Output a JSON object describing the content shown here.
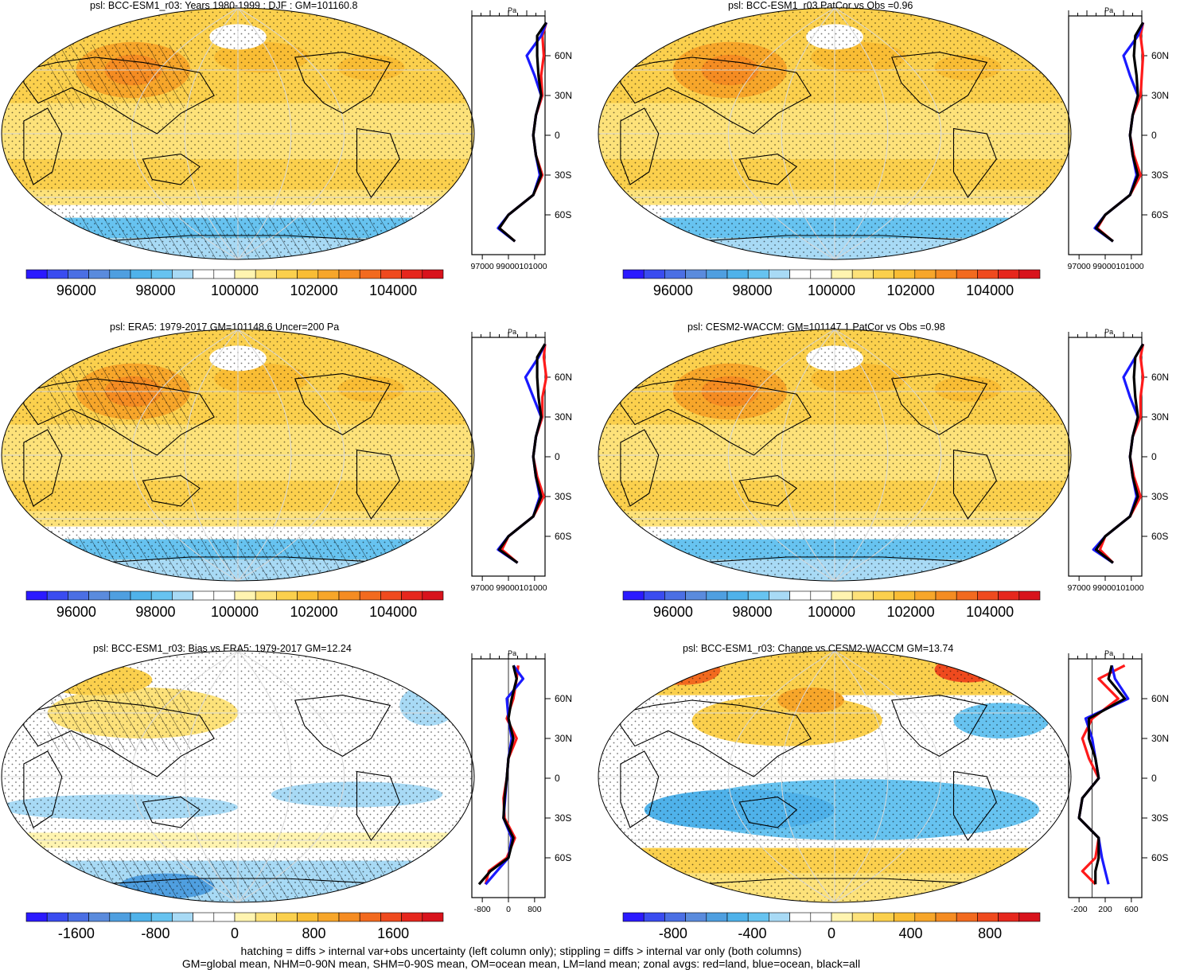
{
  "colors": {
    "abs_scale": [
      "#2b1aff",
      "#3a4cf0",
      "#4b6fe4",
      "#5a8bdd",
      "#4f9fe0",
      "#4fb2ea",
      "#67c3f0",
      "#a8daf5",
      "#ffffff",
      "#ffffff",
      "#fff4b0",
      "#fde27a",
      "#fbd04d",
      "#f9bd34",
      "#f7a62a",
      "#f58c22",
      "#f26a1f",
      "#ef4a1e",
      "#e6271d",
      "#d8131c"
    ],
    "land_line": "#ff1a1a",
    "ocean_line": "#1a1aff",
    "all_line": "#000000"
  },
  "panels": [
    {
      "title": "psl: BCC-ESM1_r03: Years 1980-1999 : DJF : GM=101160.8"
    },
    {
      "title": "psl: BCC-ESM1_r03 PatCor vs Obs =0.96"
    },
    {
      "title": "psl: ERA5: 1979-2017 GM=101148.6 Uncer=200 Pa"
    },
    {
      "title": "psl: CESM2-WACCM: GM=101147.1 PatCor vs Obs =0.98"
    },
    {
      "title": "psl: BCC-ESM1_r03: Bias vs ERA5: 1979-2017 GM=12.24"
    },
    {
      "title": "psl: BCC-ESM1_r03: Change vs CESM2-WACCM GM=13.74"
    }
  ],
  "colorbars": {
    "abs": [
      "96000",
      "98000",
      "100000",
      "102000",
      "104000"
    ],
    "bias": [
      "-1600",
      "-800",
      "0",
      "800",
      "1600"
    ],
    "change": [
      "-800",
      "-400",
      "0",
      "400",
      "800"
    ]
  },
  "zonal": {
    "unit_label": "Pa",
    "lat_labels": [
      "60N",
      "30N",
      "0",
      "30S",
      "60S"
    ],
    "abs_ticks": [
      "97000",
      "99000101000"
    ],
    "bias_ticks": [
      "-800",
      "0",
      "800"
    ],
    "change_ticks": [
      "-200",
      "200",
      "600"
    ]
  },
  "chart_data": [
    {
      "type": "heatmap",
      "title": "psl: BCC-ESM1_r03: Years 1980-1999 : DJF : GM=101160.8",
      "colorbar_ticks": [
        96000,
        98000,
        100000,
        102000,
        104000
      ],
      "zonal_avg": {
        "lat": [
          85,
          75,
          60,
          45,
          30,
          15,
          0,
          -15,
          -30,
          -45,
          -60,
          -70,
          -80
        ],
        "land": [
          101900,
          101600,
          101700,
          101500,
          101600,
          101100,
          100900,
          101100,
          101600,
          100900,
          99000,
          98300,
          99500
        ],
        "ocean": [
          101900,
          101500,
          100400,
          101000,
          101500,
          101100,
          100900,
          101100,
          101400,
          100900,
          99000,
          98200,
          99500
        ],
        "all": [
          101900,
          101200,
          101200,
          101300,
          101500,
          101100,
          100900,
          101100,
          101500,
          100900,
          99000,
          98300,
          99500
        ],
        "xticks": [
          97000,
          99000,
          101000
        ]
      }
    },
    {
      "type": "heatmap",
      "title": "psl: BCC-ESM1_r03 PatCor vs Obs =0.96",
      "colorbar_ticks": [
        96000,
        98000,
        100000,
        102000,
        104000
      ],
      "zonal_avg": {
        "lat": [
          85,
          75,
          60,
          45,
          30,
          15,
          0,
          -15,
          -30,
          -45,
          -60,
          -70,
          -80
        ],
        "land": [
          101900,
          101700,
          101900,
          101800,
          101700,
          101100,
          100900,
          101200,
          101700,
          100900,
          99000,
          98400,
          99600
        ],
        "ocean": [
          101900,
          101500,
          100400,
          100900,
          101500,
          101100,
          100900,
          101100,
          101400,
          100900,
          99000,
          98200,
          99600
        ],
        "all": [
          101900,
          101300,
          101200,
          101400,
          101500,
          101100,
          100900,
          101100,
          101500,
          100900,
          99000,
          98300,
          99600
        ],
        "xticks": [
          97000,
          99000,
          101000
        ]
      }
    },
    {
      "type": "heatmap",
      "title": "psl: ERA5: 1979-2017 GM=101148.6 Uncer=200 Pa",
      "colorbar_ticks": [
        96000,
        98000,
        100000,
        102000,
        104000
      ],
      "zonal_avg": {
        "lat": [
          85,
          75,
          60,
          45,
          30,
          15,
          0,
          -15,
          -30,
          -45,
          -60,
          -70,
          -80
        ],
        "land": [
          101800,
          101700,
          101900,
          101600,
          101600,
          101100,
          100900,
          101200,
          101700,
          100900,
          99000,
          98500,
          99700
        ],
        "ocean": [
          101800,
          101300,
          100300,
          100900,
          101500,
          101100,
          100900,
          101100,
          101400,
          100900,
          99000,
          98200,
          99700
        ],
        "all": [
          101800,
          101200,
          101200,
          101300,
          101500,
          101100,
          100900,
          101100,
          101500,
          100900,
          99000,
          98300,
          99700
        ],
        "xticks": [
          97000,
          99000,
          101000
        ]
      }
    },
    {
      "type": "heatmap",
      "title": "psl: CESM2-WACCM: GM=101147.1 PatCor vs Obs =0.98",
      "colorbar_ticks": [
        96000,
        98000,
        100000,
        102000,
        104000
      ],
      "zonal_avg": {
        "lat": [
          85,
          75,
          60,
          45,
          30,
          15,
          0,
          -15,
          -30,
          -45,
          -60,
          -70,
          -80
        ],
        "land": [
          101900,
          101700,
          101900,
          101700,
          101700,
          101100,
          100900,
          101200,
          101700,
          100900,
          99000,
          98600,
          99600
        ],
        "ocean": [
          101900,
          101300,
          100400,
          100900,
          101500,
          101100,
          100900,
          101100,
          101400,
          100900,
          99000,
          98100,
          99600
        ],
        "all": [
          101900,
          101300,
          101200,
          101300,
          101500,
          101100,
          100900,
          101100,
          101500,
          100900,
          99000,
          98300,
          99600
        ],
        "xticks": [
          97000,
          99000,
          101000
        ]
      }
    },
    {
      "type": "heatmap",
      "title": "psl: BCC-ESM1_r03: Bias vs ERA5: 1979-2017 GM=12.24",
      "colorbar_ticks": [
        -1600,
        -800,
        0,
        800,
        1600
      ],
      "zonal_avg": {
        "lat": [
          85,
          75,
          60,
          45,
          30,
          15,
          0,
          -15,
          -30,
          -45,
          -60,
          -70,
          -80
        ],
        "land": [
          300,
          250,
          150,
          -50,
          250,
          0,
          -50,
          -150,
          -120,
          200,
          -50,
          -600,
          -700
        ],
        "ocean": [
          150,
          450,
          -50,
          0,
          100,
          0,
          -50,
          -100,
          -150,
          100,
          0,
          -350,
          -700
        ],
        "all": [
          150,
          250,
          100,
          0,
          150,
          0,
          -50,
          -120,
          -150,
          150,
          0,
          -550,
          -900
        ],
        "xticks": [
          -800,
          0,
          800
        ]
      }
    },
    {
      "type": "heatmap",
      "title": "psl: BCC-ESM1_r03: Change vs CESM2-WACCM GM=13.74",
      "colorbar_ticks": [
        -800,
        -400,
        0,
        400,
        800
      ],
      "zonal_avg": {
        "lat": [
          85,
          75,
          60,
          45,
          30,
          15,
          0,
          -15,
          -30,
          -45,
          -60,
          -70,
          -80
        ],
        "land": [
          500,
          100,
          400,
          0,
          -150,
          -50,
          100,
          -150,
          -200,
          100,
          50,
          -150,
          50
        ],
        "ocean": [
          300,
          350,
          550,
          -100,
          0,
          50,
          100,
          -150,
          -200,
          100,
          150,
          200,
          250
        ],
        "all": [
          300,
          250,
          500,
          -50,
          -50,
          50,
          100,
          -150,
          -200,
          100,
          100,
          50,
          50
        ],
        "xticks": [
          -200,
          200,
          600
        ]
      }
    }
  ],
  "footer": {
    "line1": "hatching = diffs > internal var+obs uncertainty (left column only); stippling = diffs > internal var only (both columns)",
    "line2": "GM=global mean, NHM=0-90N mean, SHM=0-90S mean, OM=ocean mean, LM=land mean; zonal avgs: red=land, blue=ocean, black=all"
  }
}
